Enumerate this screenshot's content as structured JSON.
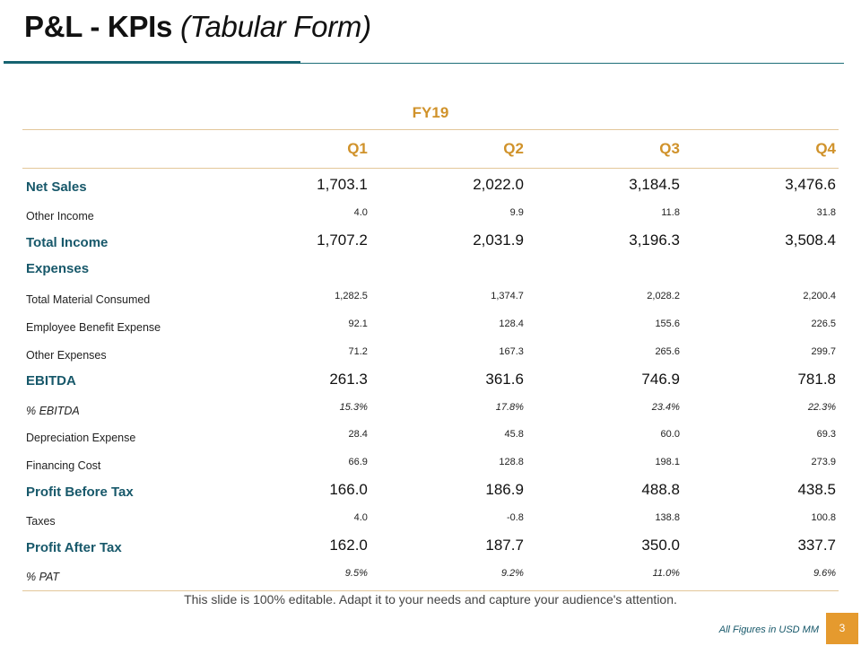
{
  "slide": {
    "title_main": "P&L - KPIs",
    "title_sub": "(Tabular Form)",
    "footer_note": "This slide is 100% editable. Adapt it to your needs and capture your audience's attention.",
    "figures_note": "All Figures in USD MM",
    "page_number": "3"
  },
  "table": {
    "fiscal_year": "FY19",
    "columns": [
      "Q1",
      "Q2",
      "Q3",
      "Q4"
    ],
    "rows": [
      {
        "label": "Net Sales",
        "style": "major",
        "values": [
          "1,703.1",
          "2,022.0",
          "3,184.5",
          "3,476.6"
        ]
      },
      {
        "label": "Other Income",
        "style": "minor",
        "values": [
          "4.0",
          "9.9",
          "11.8",
          "31.8"
        ]
      },
      {
        "label": "Total Income",
        "style": "major",
        "values": [
          "1,707.2",
          "2,031.9",
          "3,196.3",
          "3,508.4"
        ]
      },
      {
        "label": "Expenses",
        "style": "section",
        "values": [
          "",
          "",
          "",
          ""
        ]
      },
      {
        "label": "Total Material Consumed",
        "style": "minor",
        "values": [
          "1,282.5",
          "1,374.7",
          "2,028.2",
          "2,200.4"
        ]
      },
      {
        "label": "Employee Benefit Expense",
        "style": "minor",
        "values": [
          "92.1",
          "128.4",
          "155.6",
          "226.5"
        ]
      },
      {
        "label": "Other Expenses",
        "style": "minor",
        "values": [
          "71.2",
          "167.3",
          "265.6",
          "299.7"
        ]
      },
      {
        "label": "EBITDA",
        "style": "major",
        "values": [
          "261.3",
          "361.6",
          "746.9",
          "781.8"
        ]
      },
      {
        "label": "% EBITDA",
        "style": "pct",
        "values": [
          "15.3%",
          "17.8%",
          "23.4%",
          "22.3%"
        ]
      },
      {
        "label": "Depreciation Expense",
        "style": "minor",
        "values": [
          "28.4",
          "45.8",
          "60.0",
          "69.3"
        ]
      },
      {
        "label": "Financing Cost",
        "style": "minor",
        "values": [
          "66.9",
          "128.8",
          "198.1",
          "273.9"
        ]
      },
      {
        "label": "Profit Before Tax",
        "style": "major",
        "values": [
          "166.0",
          "186.9",
          "488.8",
          "438.5"
        ]
      },
      {
        "label": "Taxes",
        "style": "minor",
        "values": [
          "4.0",
          "-0.8",
          "138.8",
          "100.8"
        ]
      },
      {
        "label": "Profit After Tax",
        "style": "major",
        "values": [
          "162.0",
          "187.7",
          "350.0",
          "337.7"
        ]
      },
      {
        "label": "% PAT",
        "style": "pct",
        "values": [
          "9.5%",
          "9.2%",
          "11.0%",
          "9.6%"
        ]
      }
    ]
  }
}
